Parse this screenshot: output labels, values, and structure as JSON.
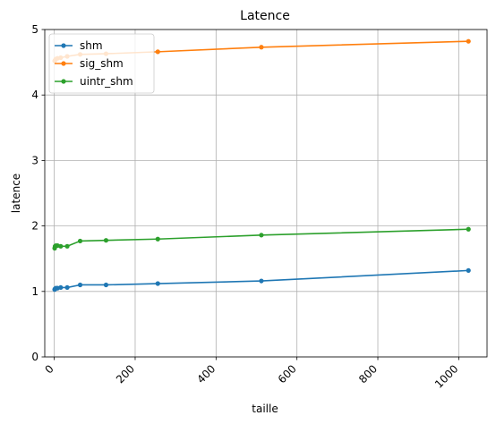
{
  "chart_data": {
    "type": "line",
    "title": "Latence",
    "xlabel": "taille",
    "ylabel": "latence",
    "xlim": [
      -23.5,
      1070
    ],
    "ylim": [
      0,
      5
    ],
    "xticks": [
      0,
      200,
      400,
      600,
      800,
      1000
    ],
    "yticks": [
      0,
      1,
      2,
      3,
      4,
      5
    ],
    "grid": true,
    "legend_position": "top-left",
    "x": [
      1,
      2,
      4,
      8,
      16,
      32,
      64,
      128,
      256,
      512,
      1024
    ],
    "series": [
      {
        "name": "shm",
        "color": "#1f77b4",
        "values": [
          1.03,
          1.04,
          1.05,
          1.05,
          1.06,
          1.06,
          1.1,
          1.1,
          1.12,
          1.16,
          1.32
        ]
      },
      {
        "name": "sig_shm",
        "color": "#ff7f0e",
        "values": [
          4.52,
          4.53,
          4.55,
          4.56,
          4.57,
          4.59,
          4.62,
          4.63,
          4.66,
          4.73,
          4.82
        ]
      },
      {
        "name": "uintr_shm",
        "color": "#2ca02c",
        "values": [
          1.66,
          1.69,
          1.7,
          1.7,
          1.69,
          1.69,
          1.77,
          1.78,
          1.8,
          1.86,
          1.95
        ]
      }
    ]
  }
}
